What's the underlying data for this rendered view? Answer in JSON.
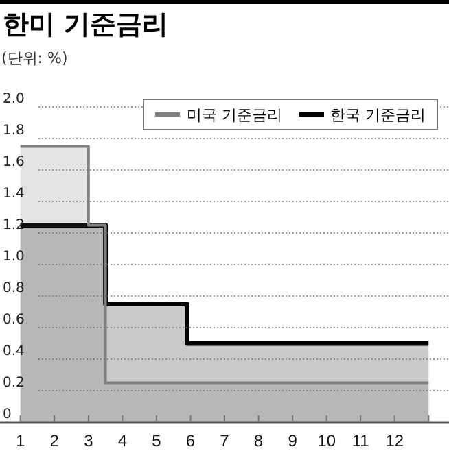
{
  "chart_data": {
    "type": "area",
    "title": "한미 기준금리",
    "subtitle": "(단위: %)",
    "xlim": [
      0.4,
      13.6
    ],
    "xticks": [
      1,
      2,
      3,
      4,
      5,
      6,
      7,
      8,
      9,
      10,
      11,
      12,
      {
        "value": 13,
        "label": null
      }
    ],
    "ylim": [
      0,
      2
    ],
    "yticks": [
      0,
      0.2,
      0.4,
      0.6,
      0.8,
      {
        "value": 1,
        "label": "1.0"
      },
      1.2,
      1.4,
      1.6,
      1.8,
      {
        "value": 2,
        "label": "2.0"
      }
    ],
    "grid": "y",
    "legend": "top right",
    "series": [
      {
        "name": "미국 기준금리",
        "color": "#808080",
        "x": [
          1,
          3,
          3.5,
          13
        ],
        "values": [
          1.75,
          1.25,
          0.25,
          0.25
        ]
      },
      {
        "name": "한국 기준금리",
        "color": "#000000",
        "x": [
          1,
          3.5,
          5.9,
          13
        ],
        "values": [
          1.25,
          0.75,
          0.5,
          0.5
        ]
      }
    ]
  }
}
